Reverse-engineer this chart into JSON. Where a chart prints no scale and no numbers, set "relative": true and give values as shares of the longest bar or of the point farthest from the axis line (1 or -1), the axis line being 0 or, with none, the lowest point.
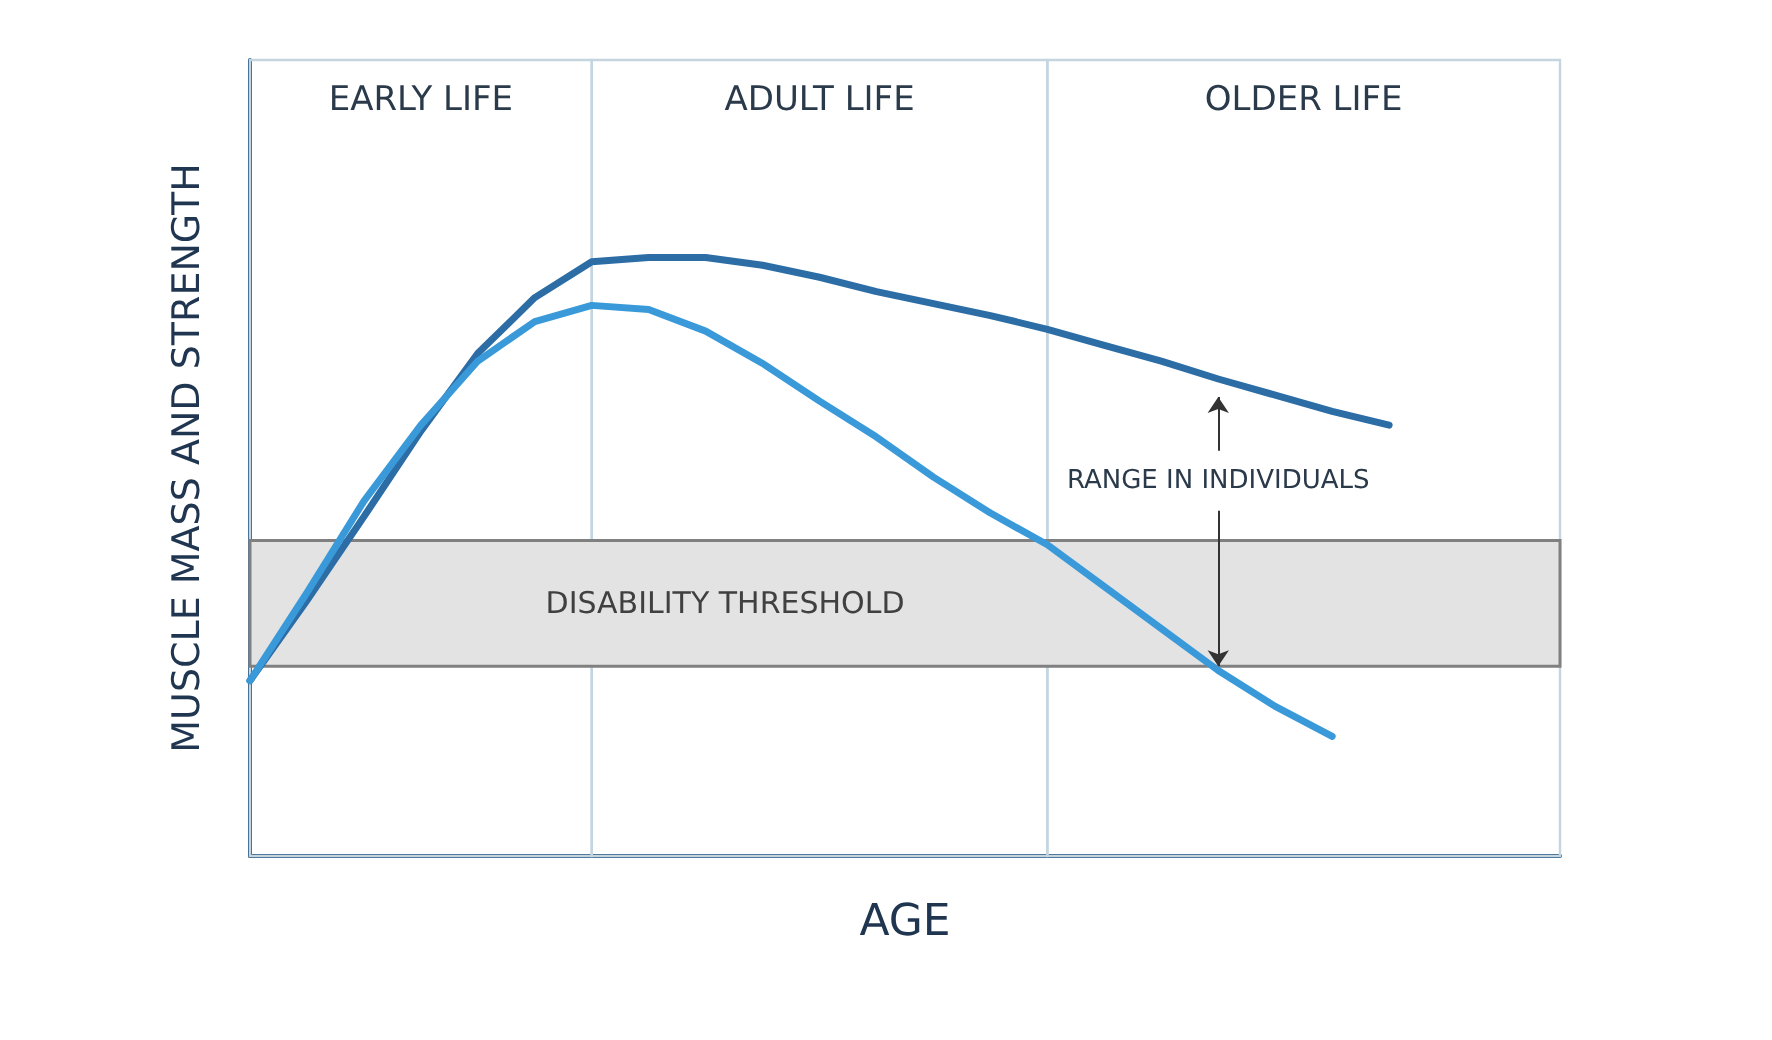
{
  "chart_data": {
    "type": "line",
    "relative": true,
    "xlabel": "AGE",
    "ylabel": "MUSCLE MASS AND STRENGTH",
    "grid": false,
    "marker": "none",
    "line_style": "solid",
    "categories": [
      null,
      null,
      null,
      null,
      null,
      null,
      null,
      null,
      null,
      null,
      null,
      null,
      null,
      null,
      null,
      null,
      null,
      null,
      null,
      null,
      null,
      null,
      null,
      null
    ],
    "series": [
      {
        "color": "#2c6da6",
        "values": [
          0.293,
          0.427,
          0.567,
          0.71,
          0.84,
          0.933,
          0.993,
          1.0,
          1.0,
          0.987,
          0.967,
          0.943,
          0.923,
          0.903,
          0.88,
          0.853,
          0.827,
          0.797,
          0.77,
          0.743,
          0.72,
          null,
          null,
          null
        ]
      },
      {
        "color": "#3a9ad9",
        "values": [
          0.293,
          0.44,
          0.593,
          0.72,
          0.827,
          0.893,
          0.92,
          0.913,
          0.877,
          0.823,
          0.76,
          0.7,
          0.633,
          0.573,
          0.52,
          0.45,
          0.38,
          0.31,
          0.25,
          0.2,
          null,
          null,
          null,
          null
        ]
      }
    ],
    "bands": [
      {
        "axis": "y",
        "from": 0.317,
        "to": 0.527,
        "label": "DISABILITY THRESHOLD",
        "color": "#e3e3e3"
      }
    ],
    "annotations": [
      "EARLY LIFE",
      "ADULT LIFE",
      "OLDER LIFE",
      "RANGE IN INDIVIDUALS"
    ]
  }
}
